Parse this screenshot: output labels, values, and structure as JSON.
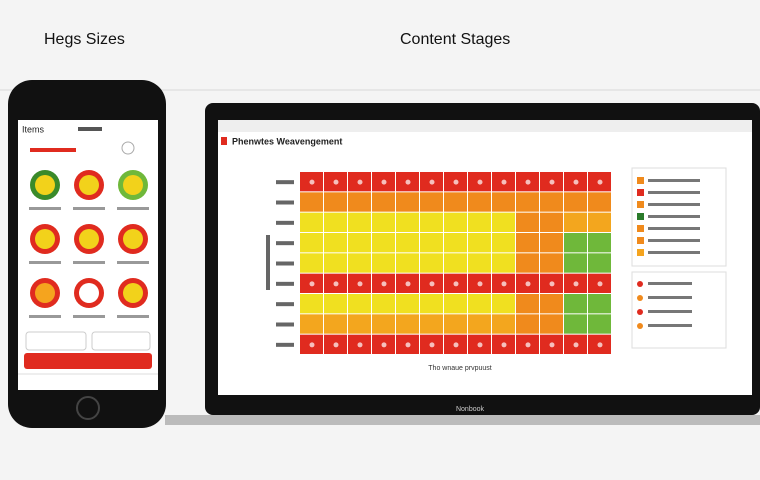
{
  "header": {
    "left_title": "Hegs Sizes",
    "right_title": "Content Stages"
  },
  "phone": {
    "title": "Items",
    "icons": [
      {
        "ring": "#3a8a2a",
        "inner": "#f2d21b"
      },
      {
        "ring": "#e02b1f",
        "inner": "#f2d21b"
      },
      {
        "ring": "#6fb83a",
        "inner": "#f2d21b"
      },
      {
        "ring": "#e02b1f",
        "inner": "#f2d21b"
      },
      {
        "ring": "#e02b1f",
        "inner": "#f2d21b"
      },
      {
        "ring": "#e02b1f",
        "inner": "#f2d21b"
      },
      {
        "ring": "#e02b1f",
        "inner": "#f5a41e"
      },
      {
        "ring": "#e02b1f",
        "inner": "#ffffff"
      },
      {
        "ring": "#e02b1f",
        "inner": "#f2d21b"
      }
    ]
  },
  "laptop": {
    "title": "Phenwtes Weavengement",
    "x_label": "Tho wnaue prvpuust",
    "brand": "Nonbook",
    "palette": {
      "r": "#e02b1f",
      "o": "#f08a1c",
      "a": "#f3a61e",
      "y": "#f0e020",
      "g": "#6fb83a"
    },
    "heatmap": [
      [
        "r",
        "r",
        "r",
        "r",
        "r",
        "r",
        "r",
        "r",
        "r",
        "r",
        "r",
        "r",
        "r"
      ],
      [
        "o",
        "o",
        "o",
        "o",
        "o",
        "o",
        "o",
        "o",
        "o",
        "o",
        "o",
        "o",
        "o"
      ],
      [
        "y",
        "y",
        "y",
        "y",
        "y",
        "y",
        "y",
        "y",
        "y",
        "o",
        "o",
        "a",
        "a"
      ],
      [
        "y",
        "y",
        "y",
        "y",
        "y",
        "y",
        "y",
        "y",
        "y",
        "o",
        "o",
        "g",
        "g"
      ],
      [
        "y",
        "y",
        "y",
        "y",
        "y",
        "y",
        "y",
        "y",
        "y",
        "o",
        "o",
        "g",
        "g"
      ],
      [
        "r",
        "r",
        "r",
        "r",
        "r",
        "r",
        "r",
        "r",
        "r",
        "r",
        "r",
        "r",
        "r"
      ],
      [
        "y",
        "y",
        "y",
        "y",
        "y",
        "y",
        "y",
        "y",
        "y",
        "o",
        "o",
        "g",
        "g"
      ],
      [
        "a",
        "a",
        "a",
        "a",
        "a",
        "a",
        "a",
        "a",
        "a",
        "o",
        "o",
        "g",
        "g"
      ],
      [
        "r",
        "r",
        "r",
        "r",
        "r",
        "r",
        "r",
        "r",
        "r",
        "r",
        "r",
        "r",
        "r"
      ]
    ],
    "legend": [
      "#f08a1c",
      "#e02b1f",
      "#f08a1c",
      "#2a7a2a",
      "#f08a1c",
      "#f08a1c",
      "#f5a41e"
    ],
    "legend2": [
      "#e02b1f",
      "#f08a1c",
      "#e02b1f",
      "#f08a1c"
    ]
  }
}
